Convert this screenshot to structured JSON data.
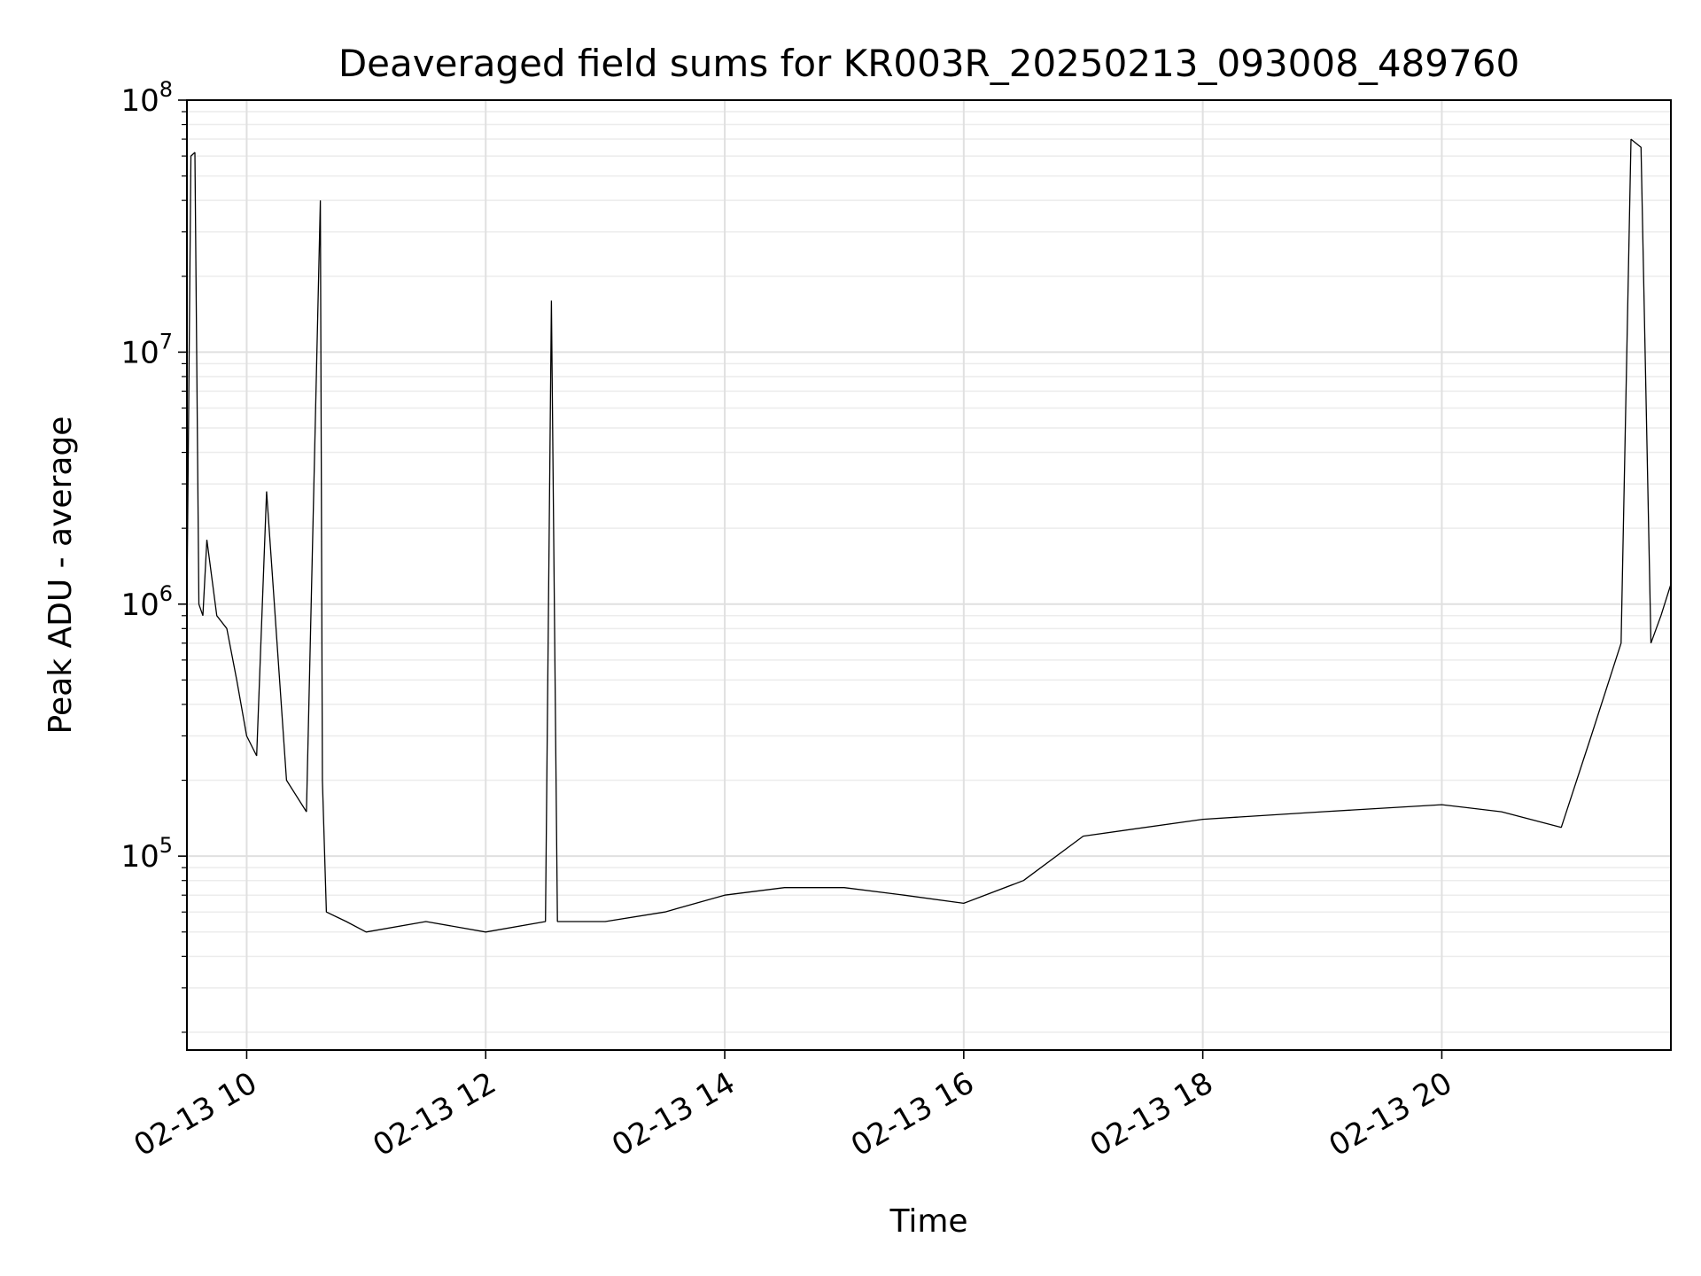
{
  "chart_data": {
    "type": "line",
    "title": "Deaveraged field sums for KR003R_20250213_093008_489760",
    "xlabel": "Time",
    "ylabel": "Peak ADU - average",
    "yscale": "log",
    "ylim": [
      17000,
      100000000
    ],
    "xlim": [
      "2025-02-13 09:30",
      "2025-02-13 21:55"
    ],
    "x_ticks": [
      "02-13 10",
      "02-13 12",
      "02-13 14",
      "02-13 16",
      "02-13 18",
      "02-13 20"
    ],
    "x_tick_times": [
      "2025-02-13 10:00",
      "2025-02-13 12:00",
      "2025-02-13 14:00",
      "2025-02-13 16:00",
      "2025-02-13 18:00",
      "2025-02-13 20:00"
    ],
    "y_ticks": [
      {
        "base": "10",
        "exp": "5",
        "value": 100000
      },
      {
        "base": "10",
        "exp": "6",
        "value": 1000000
      },
      {
        "base": "10",
        "exp": "7",
        "value": 10000000
      },
      {
        "base": "10",
        "exp": "8",
        "value": 100000000
      }
    ],
    "grid": true,
    "line_color": "#000000",
    "series": [
      {
        "x": [
          "2025-02-13 09:30",
          "2025-02-13 09:32",
          "2025-02-13 09:34",
          "2025-02-13 09:36",
          "2025-02-13 09:38",
          "2025-02-13 09:40",
          "2025-02-13 09:45",
          "2025-02-13 09:50",
          "2025-02-13 09:55",
          "2025-02-13 10:00",
          "2025-02-13 10:05",
          "2025-02-13 10:10",
          "2025-02-13 10:20",
          "2025-02-13 10:30",
          "2025-02-13 10:37",
          "2025-02-13 10:38",
          "2025-02-13 10:40",
          "2025-02-13 10:50",
          "2025-02-13 11:00",
          "2025-02-13 11:30",
          "2025-02-13 12:00",
          "2025-02-13 12:30",
          "2025-02-13 12:33",
          "2025-02-13 12:36",
          "2025-02-13 13:00",
          "2025-02-13 13:30",
          "2025-02-13 14:00",
          "2025-02-13 14:30",
          "2025-02-13 15:00",
          "2025-02-13 15:30",
          "2025-02-13 16:00",
          "2025-02-13 16:30",
          "2025-02-13 17:00",
          "2025-02-13 18:00",
          "2025-02-13 19:00",
          "2025-02-13 20:00",
          "2025-02-13 20:30",
          "2025-02-13 21:00",
          "2025-02-13 21:15",
          "2025-02-13 21:30",
          "2025-02-13 21:35",
          "2025-02-13 21:40",
          "2025-02-13 21:45",
          "2025-02-13 21:50",
          "2025-02-13 21:55"
        ],
        "y": [
          1000000,
          60000000,
          62000000,
          1000000,
          900000,
          1800000,
          900000,
          800000,
          500000,
          300000,
          250000,
          2800000,
          200000,
          150000,
          40000000,
          200000,
          60000,
          55000,
          50000,
          55000,
          50000,
          55000,
          16000000,
          55000,
          55000,
          60000,
          70000,
          75000,
          75000,
          70000,
          65000,
          80000,
          120000,
          140000,
          150000,
          160000,
          150000,
          130000,
          300000,
          700000,
          70000000,
          65000000,
          700000,
          900000,
          1200000
        ]
      }
    ]
  }
}
